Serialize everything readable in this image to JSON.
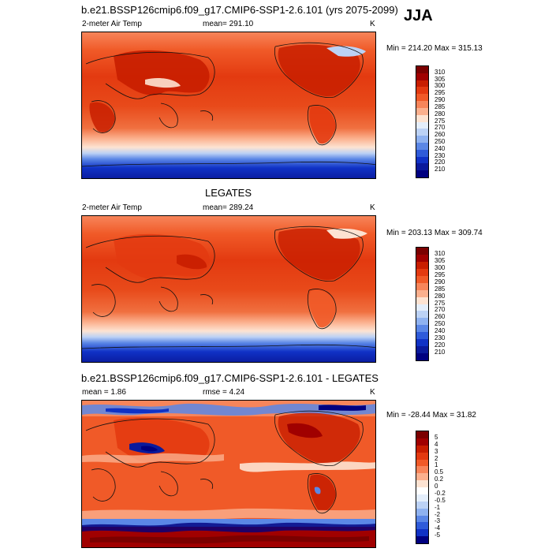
{
  "season": "JJA",
  "panels": [
    {
      "title": "b.e21.BSSP126cmip6.f09_g17.CMIP6-SSP1-2.6.101 (yrs 2075-2099)",
      "left_label": "2-meter Air Temp",
      "center_label": "mean= 291.10",
      "right_label": "K",
      "minmax": "Min = 214.20 Max = 315.13",
      "levels": [
        "310",
        "305",
        "300",
        "295",
        "290",
        "285",
        "280",
        "275",
        "270",
        "260",
        "250",
        "240",
        "230",
        "220",
        "210"
      ],
      "colors": [
        "#7b0000",
        "#a00000",
        "#c81e00",
        "#e33a10",
        "#f05a28",
        "#f7855a",
        "#fbb08e",
        "#fde3d2",
        "#e4eefb",
        "#bcd2f5",
        "#8fb2f0",
        "#5b87e6",
        "#2f5bd9",
        "#1032c6",
        "#0a1a9c",
        "#000080"
      ],
      "fill_type": "absolute"
    },
    {
      "title": "LEGATES",
      "left_label": "2-meter Air Temp",
      "center_label": "mean= 289.24",
      "right_label": "K",
      "minmax": "Min = 203.13 Max = 309.74",
      "levels": [
        "310",
        "305",
        "300",
        "295",
        "290",
        "285",
        "280",
        "275",
        "270",
        "260",
        "250",
        "240",
        "230",
        "220",
        "210"
      ],
      "colors": [
        "#7b0000",
        "#a00000",
        "#c81e00",
        "#e33a10",
        "#f05a28",
        "#f7855a",
        "#fbb08e",
        "#fde3d2",
        "#e4eefb",
        "#bcd2f5",
        "#8fb2f0",
        "#5b87e6",
        "#2f5bd9",
        "#1032c6",
        "#0a1a9c",
        "#000080"
      ],
      "fill_type": "absolute"
    },
    {
      "title": "b.e21.BSSP126cmip6.f09_g17.CMIP6-SSP1-2.6.101 - LEGATES",
      "left_label": "mean =   1.86",
      "center_label": "rmse =   4.24",
      "right_label": "K",
      "minmax": "Min = -28.44 Max =  31.82",
      "levels": [
        "5",
        "4",
        "3",
        "2",
        "1",
        "0.5",
        "0.2",
        "0",
        "-0.2",
        "-0.5",
        "-1",
        "-2",
        "-3",
        "-4",
        "-5"
      ],
      "colors": [
        "#7b0000",
        "#a00000",
        "#c81e00",
        "#e33a10",
        "#f05a28",
        "#f7855a",
        "#fbb08e",
        "#fde3d2",
        "#ffffff",
        "#e4eefb",
        "#bcd2f5",
        "#8fb2f0",
        "#5b87e6",
        "#2f5bd9",
        "#1032c6",
        "#000080"
      ],
      "fill_type": "difference"
    }
  ]
}
